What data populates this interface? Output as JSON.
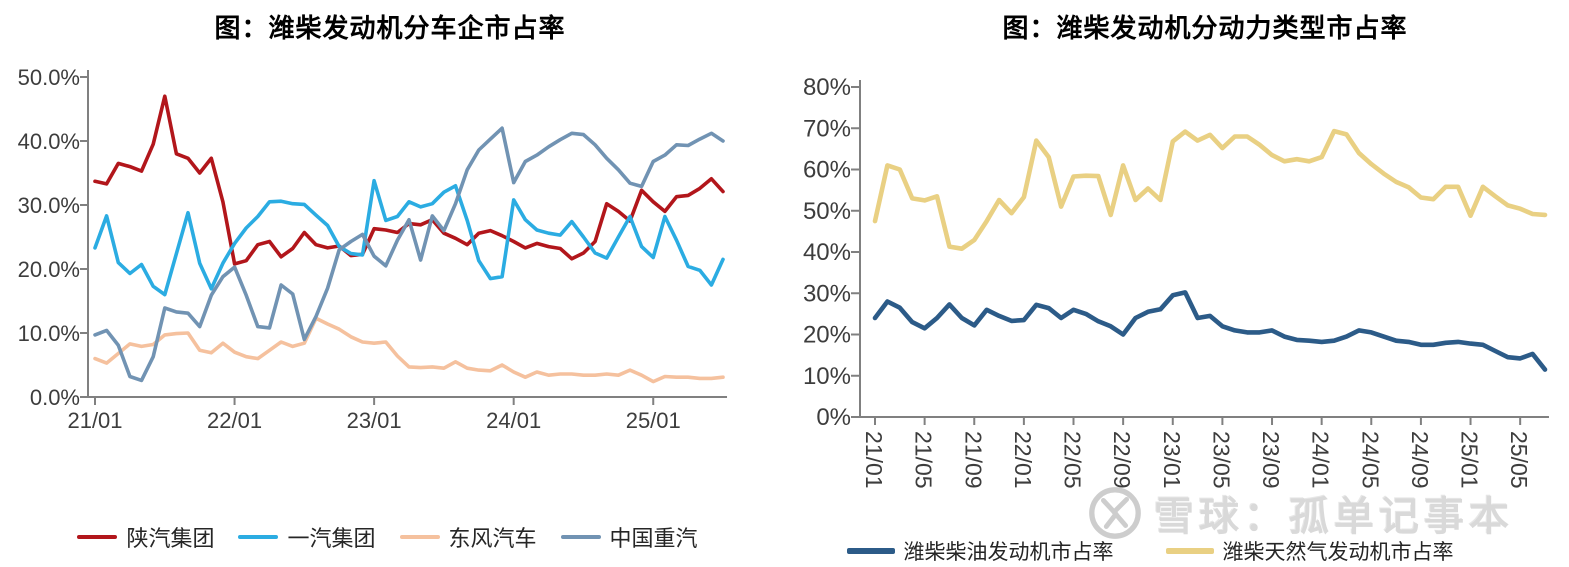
{
  "chart_data": [
    {
      "type": "line",
      "title": "图：潍柴发动机分车企市占率",
      "xlabel": "",
      "ylabel": "",
      "ylim": [
        0,
        50
      ],
      "grid": false,
      "legend_position": "bottom",
      "y_ticks": [
        "0.0%",
        "10.0%",
        "20.0%",
        "30.0%",
        "40.0%",
        "50.0%"
      ],
      "x": [
        "21/01",
        "21/02",
        "21/03",
        "21/04",
        "21/05",
        "21/06",
        "21/07",
        "21/08",
        "21/09",
        "21/10",
        "21/11",
        "21/12",
        "22/01",
        "22/02",
        "22/03",
        "22/04",
        "22/05",
        "22/06",
        "22/07",
        "22/08",
        "22/09",
        "22/10",
        "22/11",
        "22/12",
        "23/01",
        "23/02",
        "23/03",
        "23/04",
        "23/05",
        "23/06",
        "23/07",
        "23/08",
        "23/09",
        "23/10",
        "23/11",
        "23/12",
        "24/01",
        "24/02",
        "24/03",
        "24/04",
        "24/05",
        "24/06",
        "24/07",
        "24/08",
        "24/09",
        "24/10",
        "24/11",
        "24/12",
        "25/01",
        "25/02",
        "25/03",
        "25/04",
        "25/05",
        "25/06",
        "25/07"
      ],
      "x_tick_labels": [
        "21/01",
        "22/01",
        "23/01",
        "24/01",
        "25/01"
      ],
      "x_tick_every": 12,
      "series": [
        {
          "name": "陕汽集团",
          "color": "#B2161B",
          "values": [
            33.7,
            33.3,
            36.5,
            36.0,
            35.3,
            39.5,
            47.0,
            38.0,
            37.3,
            35.0,
            37.3,
            30.5,
            20.8,
            21.3,
            23.8,
            24.3,
            21.9,
            23.2,
            25.7,
            23.8,
            23.3,
            23.6,
            22.1,
            22.3,
            26.3,
            26.1,
            25.7,
            27.1,
            26.9,
            27.7,
            25.6,
            24.8,
            23.8,
            25.6,
            26.0,
            25.2,
            24.3,
            23.3,
            24.0,
            23.5,
            23.2,
            21.6,
            22.5,
            24.3,
            30.2,
            29.0,
            27.5,
            32.3,
            30.5,
            29.0,
            31.3,
            31.5,
            32.6,
            34.1,
            32.1
          ]
        },
        {
          "name": "一汽集团",
          "color": "#2BACE2",
          "values": [
            23.3,
            28.3,
            21.0,
            19.3,
            20.7,
            17.3,
            16.0,
            22.4,
            28.8,
            20.9,
            16.9,
            20.9,
            24.0,
            26.4,
            28.2,
            30.5,
            30.6,
            30.2,
            30.1,
            28.4,
            26.8,
            23.5,
            22.4,
            22.2,
            33.8,
            27.6,
            28.2,
            30.5,
            29.7,
            30.2,
            32.0,
            33.0,
            27.6,
            21.3,
            18.5,
            18.8,
            30.8,
            27.7,
            26.1,
            25.6,
            25.3,
            27.4,
            25.0,
            22.5,
            21.7,
            25.0,
            28.2,
            23.5,
            21.8,
            28.2,
            24.5,
            20.4,
            19.8,
            17.5,
            21.5
          ]
        },
        {
          "name": "东风汽车",
          "color": "#F5C19E",
          "values": [
            6.0,
            5.3,
            6.8,
            8.3,
            7.9,
            8.2,
            9.7,
            9.9,
            10.0,
            7.3,
            6.9,
            8.4,
            7.0,
            6.3,
            6.0,
            7.3,
            8.6,
            7.9,
            8.4,
            12.3,
            11.4,
            10.6,
            9.4,
            8.6,
            8.4,
            8.6,
            6.4,
            4.7,
            4.6,
            4.7,
            4.5,
            5.5,
            4.5,
            4.2,
            4.1,
            5.0,
            3.9,
            3.1,
            3.9,
            3.4,
            3.6,
            3.6,
            3.4,
            3.4,
            3.6,
            3.4,
            4.2,
            3.4,
            2.4,
            3.2,
            3.1,
            3.1,
            2.9,
            2.9,
            3.1
          ]
        },
        {
          "name": "中国重汽",
          "color": "#7193B3",
          "values": [
            9.7,
            10.4,
            8.1,
            3.2,
            2.6,
            6.3,
            13.9,
            13.3,
            13.1,
            11.0,
            15.9,
            18.8,
            20.3,
            15.9,
            11.0,
            10.8,
            17.5,
            16.1,
            9.0,
            12.6,
            17.0,
            23.0,
            24.3,
            25.4,
            22.0,
            20.5,
            24.5,
            27.7,
            21.4,
            28.3,
            26.0,
            30.2,
            35.5,
            38.6,
            40.3,
            42.0,
            33.5,
            36.8,
            37.8,
            39.1,
            40.2,
            41.2,
            41.0,
            39.4,
            37.3,
            35.5,
            33.4,
            32.9,
            36.8,
            37.8,
            39.4,
            39.3,
            40.3,
            41.2,
            40.0
          ]
        }
      ]
    },
    {
      "type": "line",
      "title": "图：潍柴发动机分动力类型市占率",
      "xlabel": "",
      "ylabel": "",
      "ylim": [
        0,
        80
      ],
      "grid": false,
      "legend_position": "bottom",
      "y_ticks": [
        "0%",
        "10%",
        "20%",
        "30%",
        "40%",
        "50%",
        "60%",
        "70%",
        "80%"
      ],
      "x": [
        "21/01",
        "21/02",
        "21/03",
        "21/04",
        "21/05",
        "21/06",
        "21/07",
        "21/08",
        "21/09",
        "21/10",
        "21/11",
        "21/12",
        "22/01",
        "22/02",
        "22/03",
        "22/04",
        "22/05",
        "22/06",
        "22/07",
        "22/08",
        "22/09",
        "22/10",
        "22/11",
        "22/12",
        "23/01",
        "23/02",
        "23/03",
        "23/04",
        "23/05",
        "23/06",
        "23/07",
        "23/08",
        "23/09",
        "23/10",
        "23/11",
        "23/12",
        "24/01",
        "24/02",
        "24/03",
        "24/04",
        "24/05",
        "24/06",
        "24/07",
        "24/08",
        "24/09",
        "24/10",
        "24/11",
        "24/12",
        "25/01",
        "25/02",
        "25/03",
        "25/04",
        "25/05",
        "25/06",
        "25/07"
      ],
      "x_tick_labels": [
        "21/01",
        "21/05",
        "21/09",
        "22/01",
        "22/05",
        "22/09",
        "23/01",
        "23/05",
        "23/09",
        "24/01",
        "24/05",
        "24/09",
        "25/01",
        "25/05"
      ],
      "x_tick_every": 4,
      "x_tick_rotation": 90,
      "series": [
        {
          "name": "潍柴柴油发动机市占率",
          "color": "#2C5B88",
          "values": [
            24.0,
            28.0,
            26.5,
            23.0,
            21.5,
            24.0,
            27.3,
            24.0,
            22.2,
            26.0,
            24.5,
            23.3,
            23.5,
            27.2,
            26.4,
            24.0,
            26.0,
            25.0,
            23.2,
            22.0,
            20.0,
            24.0,
            25.5,
            26.1,
            29.5,
            30.2,
            24.0,
            24.5,
            22.0,
            21.0,
            20.5,
            20.5,
            21.0,
            19.5,
            18.7,
            18.5,
            18.2,
            18.5,
            19.5,
            21.0,
            20.5,
            19.5,
            18.5,
            18.2,
            17.5,
            17.5,
            18.0,
            18.2,
            17.8,
            17.5,
            16.0,
            14.5,
            14.2,
            15.3,
            11.5
          ]
        },
        {
          "name": "潍柴天然气发动机市占率",
          "color": "#E9D083",
          "values": [
            47.5,
            61.0,
            60.0,
            53.0,
            52.5,
            53.5,
            41.3,
            40.8,
            42.9,
            47.5,
            52.6,
            49.4,
            53.3,
            67.0,
            63.0,
            51.0,
            58.3,
            58.5,
            58.4,
            49.0,
            61.0,
            52.6,
            55.4,
            52.6,
            66.8,
            69.2,
            67.0,
            68.4,
            65.2,
            68.0,
            68.0,
            66.0,
            63.5,
            62.0,
            62.5,
            62.0,
            63.0,
            69.3,
            68.5,
            64.0,
            61.3,
            59.0,
            57.0,
            55.7,
            53.2,
            52.8,
            55.8,
            55.8,
            48.8,
            55.8,
            53.5,
            51.3,
            50.5,
            49.2,
            49.0
          ]
        }
      ]
    }
  ],
  "watermark": {
    "text": "雪球：孤单记事本",
    "icon": "snowball-logo",
    "color": "#D9D9D9"
  },
  "style": {
    "axis_color": "#808080",
    "tick_label_color": "#3D3D3D",
    "title_color": "#000000",
    "background": "#FFFFFF"
  }
}
